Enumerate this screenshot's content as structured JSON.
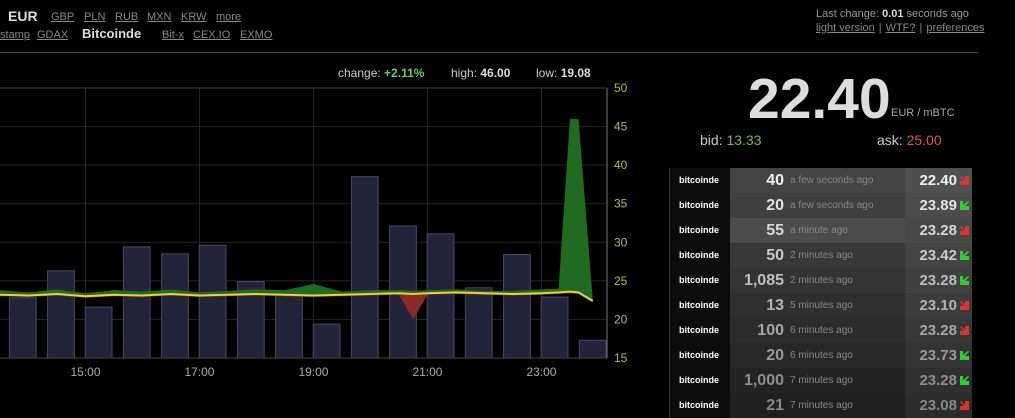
{
  "nav": {
    "currency": "EUR",
    "currency_links": [
      "GBP",
      "PLN",
      "RUB",
      "MXN",
      "KRW",
      "more"
    ],
    "exchanges": [
      "stamp",
      "GDAX",
      "Bitcoinde",
      "Bit-x",
      "CEX.IO",
      "EXMO"
    ],
    "active_exchange": 2
  },
  "status": {
    "prefix": "Last change:",
    "value": "0.01",
    "suffix": "seconds ago",
    "links": [
      "light version",
      "WTF?",
      "preferences"
    ],
    "separator": "|"
  },
  "stats": [
    {
      "label": "change:",
      "value": "+2.11%",
      "color": "#6c6"
    },
    {
      "label": "high:",
      "value": "46.00",
      "color": "#ddd"
    },
    {
      "label": "low:",
      "value": "19.08",
      "color": "#ddd"
    }
  ],
  "chart": {
    "type": "line",
    "xlim": [
      13.5,
      24.15
    ],
    "ylim": [
      15,
      50
    ],
    "xticks": [
      {
        "value": 15,
        "label": "15:00"
      },
      {
        "value": 17,
        "label": "17:00"
      },
      {
        "value": 19,
        "label": "19:00"
      },
      {
        "value": 21,
        "label": "21:00"
      },
      {
        "value": 23,
        "label": "23:00"
      }
    ],
    "yticks": [
      15,
      20,
      25,
      30,
      35,
      40,
      45,
      50
    ],
    "grid": true,
    "bars": {
      "color": "#23233a",
      "width": 0.47,
      "x": [
        13.9,
        14.57,
        15.23,
        15.9,
        16.57,
        17.23,
        17.9,
        18.57,
        19.23,
        19.9,
        20.57,
        21.23,
        21.9,
        22.57,
        23.23,
        23.9
      ],
      "values": [
        22.8,
        26.3,
        21.6,
        29.4,
        28.5,
        29.6,
        24.9,
        23.2,
        19.4,
        38.5,
        32.1,
        31.1,
        24.1,
        28.4,
        22.9,
        17.3
      ]
    },
    "x": [
      13.5,
      14,
      14.5,
      15,
      15.5,
      16,
      16.5,
      17,
      17.5,
      18,
      18.5,
      19,
      19.5,
      20,
      20.5,
      20.75,
      21,
      21.5,
      22,
      22.5,
      23,
      23.3,
      23.5,
      23.65,
      23.9
    ],
    "series": [
      {
        "color": "#e8d33a",
        "values": [
          23.2,
          23.1,
          23.3,
          23.0,
          23.2,
          23.1,
          23.3,
          23.1,
          23.2,
          23.3,
          23.2,
          23.1,
          23.2,
          23.3,
          23.4,
          23.3,
          23.4,
          23.5,
          23.4,
          23.3,
          23.4,
          23.5,
          23.6,
          23.5,
          22.4
        ]
      },
      {
        "color": "#1f6b1f",
        "values": [
          23.8,
          23.5,
          23.9,
          23.4,
          23.8,
          23.6,
          23.9,
          23.5,
          23.7,
          23.9,
          23.8,
          24.6,
          23.6,
          23.8,
          23.8,
          23.7,
          23.8,
          23.9,
          23.7,
          23.7,
          23.9,
          24.0,
          46.0,
          46.0,
          22.6
        ]
      },
      {
        "color": "#8a2a2a",
        "values": [
          23.0,
          22.9,
          23.1,
          22.8,
          23.0,
          22.9,
          23.1,
          22.9,
          23.0,
          23.1,
          23.0,
          22.9,
          23.0,
          23.1,
          23.2,
          20.0,
          23.2,
          23.3,
          23.2,
          23.1,
          23.2,
          23.3,
          23.4,
          23.3,
          22.2
        ]
      }
    ]
  },
  "ticker": {
    "price": "22.40",
    "unit": "EUR / mBTC",
    "bid_label": "bid:",
    "bid": "13.33",
    "ask_label": "ask:",
    "ask": "25.00"
  },
  "trades": [
    {
      "exchange": "bitcoinde",
      "amount": "40",
      "time": "a few seconds ago",
      "price": "22.40",
      "trend": "down"
    },
    {
      "exchange": "bitcoinde",
      "amount": "20",
      "time": "a few seconds ago",
      "price": "23.89",
      "trend": "up"
    },
    {
      "exchange": "bitcoinde",
      "amount": "55",
      "time": "a minute ago",
      "price": "23.28",
      "trend": "down"
    },
    {
      "exchange": "bitcoinde",
      "amount": "50",
      "time": "2 minutes ago",
      "price": "23.42",
      "trend": "up"
    },
    {
      "exchange": "bitcoinde",
      "amount": "1,085",
      "time": "2 minutes ago",
      "price": "23.28",
      "trend": "up"
    },
    {
      "exchange": "bitcoinde",
      "amount": "13",
      "time": "5 minutes ago",
      "price": "23.10",
      "trend": "down"
    },
    {
      "exchange": "bitcoinde",
      "amount": "100",
      "time": "6 minutes ago",
      "price": "23.28",
      "trend": "down"
    },
    {
      "exchange": "bitcoinde",
      "amount": "20",
      "time": "6 minutes ago",
      "price": "23.73",
      "trend": "up"
    },
    {
      "exchange": "bitcoinde",
      "amount": "1,000",
      "time": "7 minutes ago",
      "price": "23.28",
      "trend": "up"
    },
    {
      "exchange": "bitcoinde",
      "amount": "21",
      "time": "7 minutes ago",
      "price": "23.08",
      "trend": "down"
    }
  ]
}
